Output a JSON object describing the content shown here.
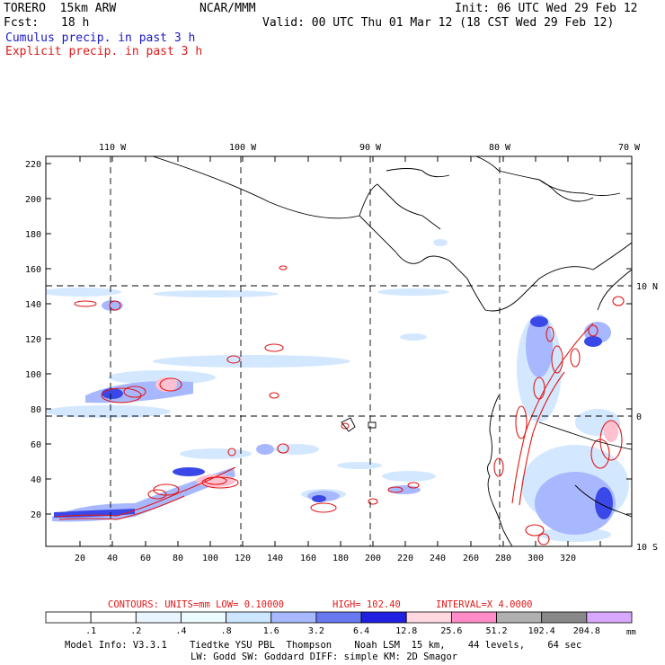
{
  "header": {
    "model": "TORERO  15km ARW",
    "org": "NCAR/MMM",
    "init": "Init: 06 UTC Wed 29 Feb 12",
    "fcst_label": "Fcst:",
    "fcst_value": "18 h",
    "valid": "Valid: 00 UTC Thu 01 Mar 12 (18 CST Wed 29 Feb 12)",
    "line1": "Cumulus precip. in past 3 h",
    "line2": "Explicit precip. in past 3 h"
  },
  "map": {
    "lon_labels": [
      "110 W",
      "100 W",
      "90 W",
      "80 W",
      "70 W"
    ],
    "lat_labels": [
      "10 N",
      "0",
      "10 S"
    ],
    "x_ticks": [
      "20",
      "40",
      "60",
      "80",
      "100",
      "120",
      "140",
      "160",
      "180",
      "200",
      "220",
      "240",
      "260",
      "280",
      "300",
      "320"
    ],
    "y_ticks": [
      "220",
      "200",
      "180",
      "160",
      "140",
      "120",
      "100",
      "80",
      "60",
      "40",
      "20"
    ]
  },
  "contours_info": {
    "label": "CONTOURS:  UNITS=mm  LOW= 0.10000",
    "high": "HIGH=  102.40",
    "interval": "INTERVAL=X  4.0000"
  },
  "colorbar": {
    "labels": [
      ".1",
      ".2",
      ".4",
      ".8",
      "1.6",
      "3.2",
      "6.4",
      "12.8",
      "25.6",
      "51.2",
      "102.4",
      "204.8"
    ],
    "unit": "mm",
    "colors": [
      "#ffffff",
      "#ffffff",
      "#e8f4ff",
      "#ecfbff",
      "#cce6ff",
      "#a8b8ff",
      "#6878f0",
      "#2020e0",
      "#ffd8e0",
      "#ff8cc8",
      "#b0b0b0",
      "#888888",
      "#d8a8ff"
    ]
  },
  "footer": {
    "line1": "Model Info: V3.3.1    Tiedtke YSU PBL  Thompson    Noah LSM  15 km,    44 levels,    64 sec",
    "line2": "LW: Godd SW: Goddard DIFF: simple KM: 2D Smagor"
  }
}
